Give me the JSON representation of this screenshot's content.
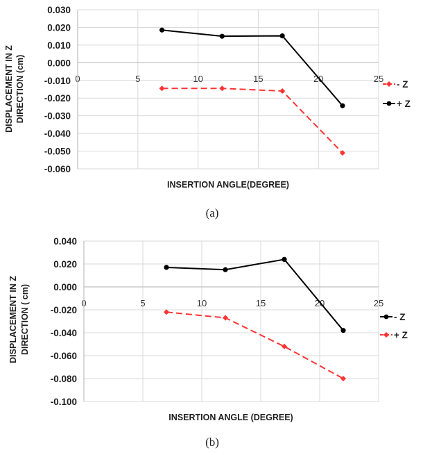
{
  "chart_data": [
    {
      "type": "line",
      "caption": "(a)",
      "xlabel": "INSERTION ANGLE(DEGREE)",
      "ylabel_lines": [
        "DISPLACEMENT IN Z",
        "DIRECTION (cm)"
      ],
      "xlim": [
        0,
        25
      ],
      "ylim": [
        -0.06,
        0.03
      ],
      "xticks": [
        "0",
        "5",
        "10",
        "15",
        "20",
        "25"
      ],
      "yticks": [
        "0.030",
        "0.020",
        "0.010",
        "0.000",
        "-0.010",
        "-0.020",
        "-0.030",
        "-0.040",
        "-0.050",
        "-0.060"
      ],
      "grid": true,
      "legend_position": "right",
      "series": [
        {
          "name": "- Z",
          "color": "#ff3333",
          "dashed": true,
          "marker": "diamond",
          "x": [
            7,
            12,
            17,
            22
          ],
          "y": [
            -0.0145,
            -0.0145,
            -0.016,
            -0.051
          ]
        },
        {
          "name": "+ Z",
          "color": "#000000",
          "dashed": false,
          "marker": "circle",
          "x": [
            7,
            12,
            17,
            22
          ],
          "y": [
            0.0185,
            0.015,
            0.0152,
            -0.0243
          ]
        }
      ]
    },
    {
      "type": "line",
      "caption": "(b)",
      "xlabel": "INSERTION ANGLE (DEGREE)",
      "ylabel_lines": [
        "DISPLACEMENT IN Z",
        "DIRECTION ( cm)"
      ],
      "xlim": [
        0,
        25
      ],
      "ylim": [
        -0.1,
        0.04
      ],
      "xticks": [
        "0",
        "5",
        "10",
        "15",
        "20",
        "25"
      ],
      "yticks": [
        "0.040",
        "0.020",
        "0.000",
        "-0.020",
        "-0.040",
        "-0.060",
        "-0.080",
        "-0.100"
      ],
      "grid": true,
      "legend_position": "right",
      "series": [
        {
          "name": "- Z",
          "color": "#000000",
          "dashed": false,
          "marker": "circle",
          "x": [
            7,
            12,
            17,
            22
          ],
          "y": [
            0.017,
            0.015,
            0.024,
            -0.038
          ]
        },
        {
          "name": "+ Z",
          "color": "#ff3333",
          "dashed": true,
          "marker": "diamond",
          "x": [
            7,
            12,
            17,
            22
          ],
          "y": [
            -0.022,
            -0.027,
            -0.052,
            -0.08
          ]
        }
      ]
    }
  ]
}
